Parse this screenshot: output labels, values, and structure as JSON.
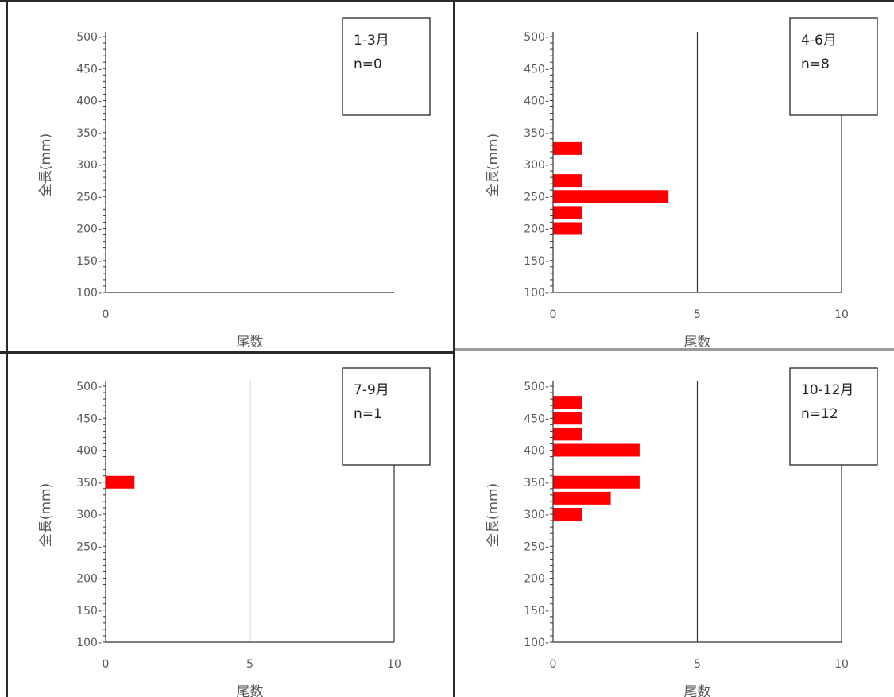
{
  "colors": {
    "bar": "#ff0000",
    "axis": "#333333",
    "text": "#595959",
    "frame": "#222222"
  },
  "chart_data": [
    {
      "type": "bar",
      "orientation": "horizontal",
      "title": "1-3月",
      "subtitle": "n=0",
      "xlabel": "尾数",
      "ylabel": "全長(mm)",
      "xlim": [
        0,
        10
      ],
      "ylim": [
        100,
        500
      ],
      "yticks": [
        "500-",
        "450-",
        "400-",
        "350-",
        "300-",
        "250-",
        "200-",
        "150-",
        "100-"
      ],
      "xticks": [
        "0"
      ],
      "gridlines_x": [],
      "categories": [],
      "values": []
    },
    {
      "type": "bar",
      "orientation": "horizontal",
      "title": "4-6月",
      "subtitle": "n=8",
      "xlabel": "尾数",
      "ylabel": "全長(mm)",
      "xlim": [
        0,
        10
      ],
      "ylim": [
        100,
        500
      ],
      "yticks": [
        "500-",
        "450-",
        "400-",
        "350-",
        "300-",
        "250-",
        "200-",
        "150-",
        "100-"
      ],
      "xticks": [
        "0",
        "5",
        "10"
      ],
      "gridlines_x": [
        5,
        10
      ],
      "categories": [
        325,
        275,
        250,
        225,
        200
      ],
      "values": [
        1,
        1,
        4,
        1,
        1
      ]
    },
    {
      "type": "bar",
      "orientation": "horizontal",
      "title": "7-9月",
      "subtitle": "n=1",
      "xlabel": "尾数",
      "ylabel": "全長(mm)",
      "xlim": [
        0,
        10
      ],
      "ylim": [
        100,
        500
      ],
      "yticks": [
        "500-",
        "450-",
        "400-",
        "350-",
        "300-",
        "250-",
        "200-",
        "150-",
        "100-"
      ],
      "xticks": [
        "0",
        "5",
        "10"
      ],
      "gridlines_x": [
        5,
        10
      ],
      "categories": [
        350
      ],
      "values": [
        1
      ]
    },
    {
      "type": "bar",
      "orientation": "horizontal",
      "title": "10-12月",
      "subtitle": "n=12",
      "xlabel": "尾数",
      "ylabel": "全長(mm)",
      "xlim": [
        0,
        10
      ],
      "ylim": [
        100,
        500
      ],
      "yticks": [
        "500-",
        "450-",
        "400-",
        "350-",
        "300-",
        "250-",
        "200-",
        "150-",
        "100-"
      ],
      "xticks": [
        "0",
        "5",
        "10"
      ],
      "gridlines_x": [
        5,
        10
      ],
      "categories": [
        475,
        450,
        425,
        400,
        350,
        325,
        300
      ],
      "values": [
        1,
        1,
        1,
        3,
        3,
        2,
        1
      ]
    }
  ]
}
